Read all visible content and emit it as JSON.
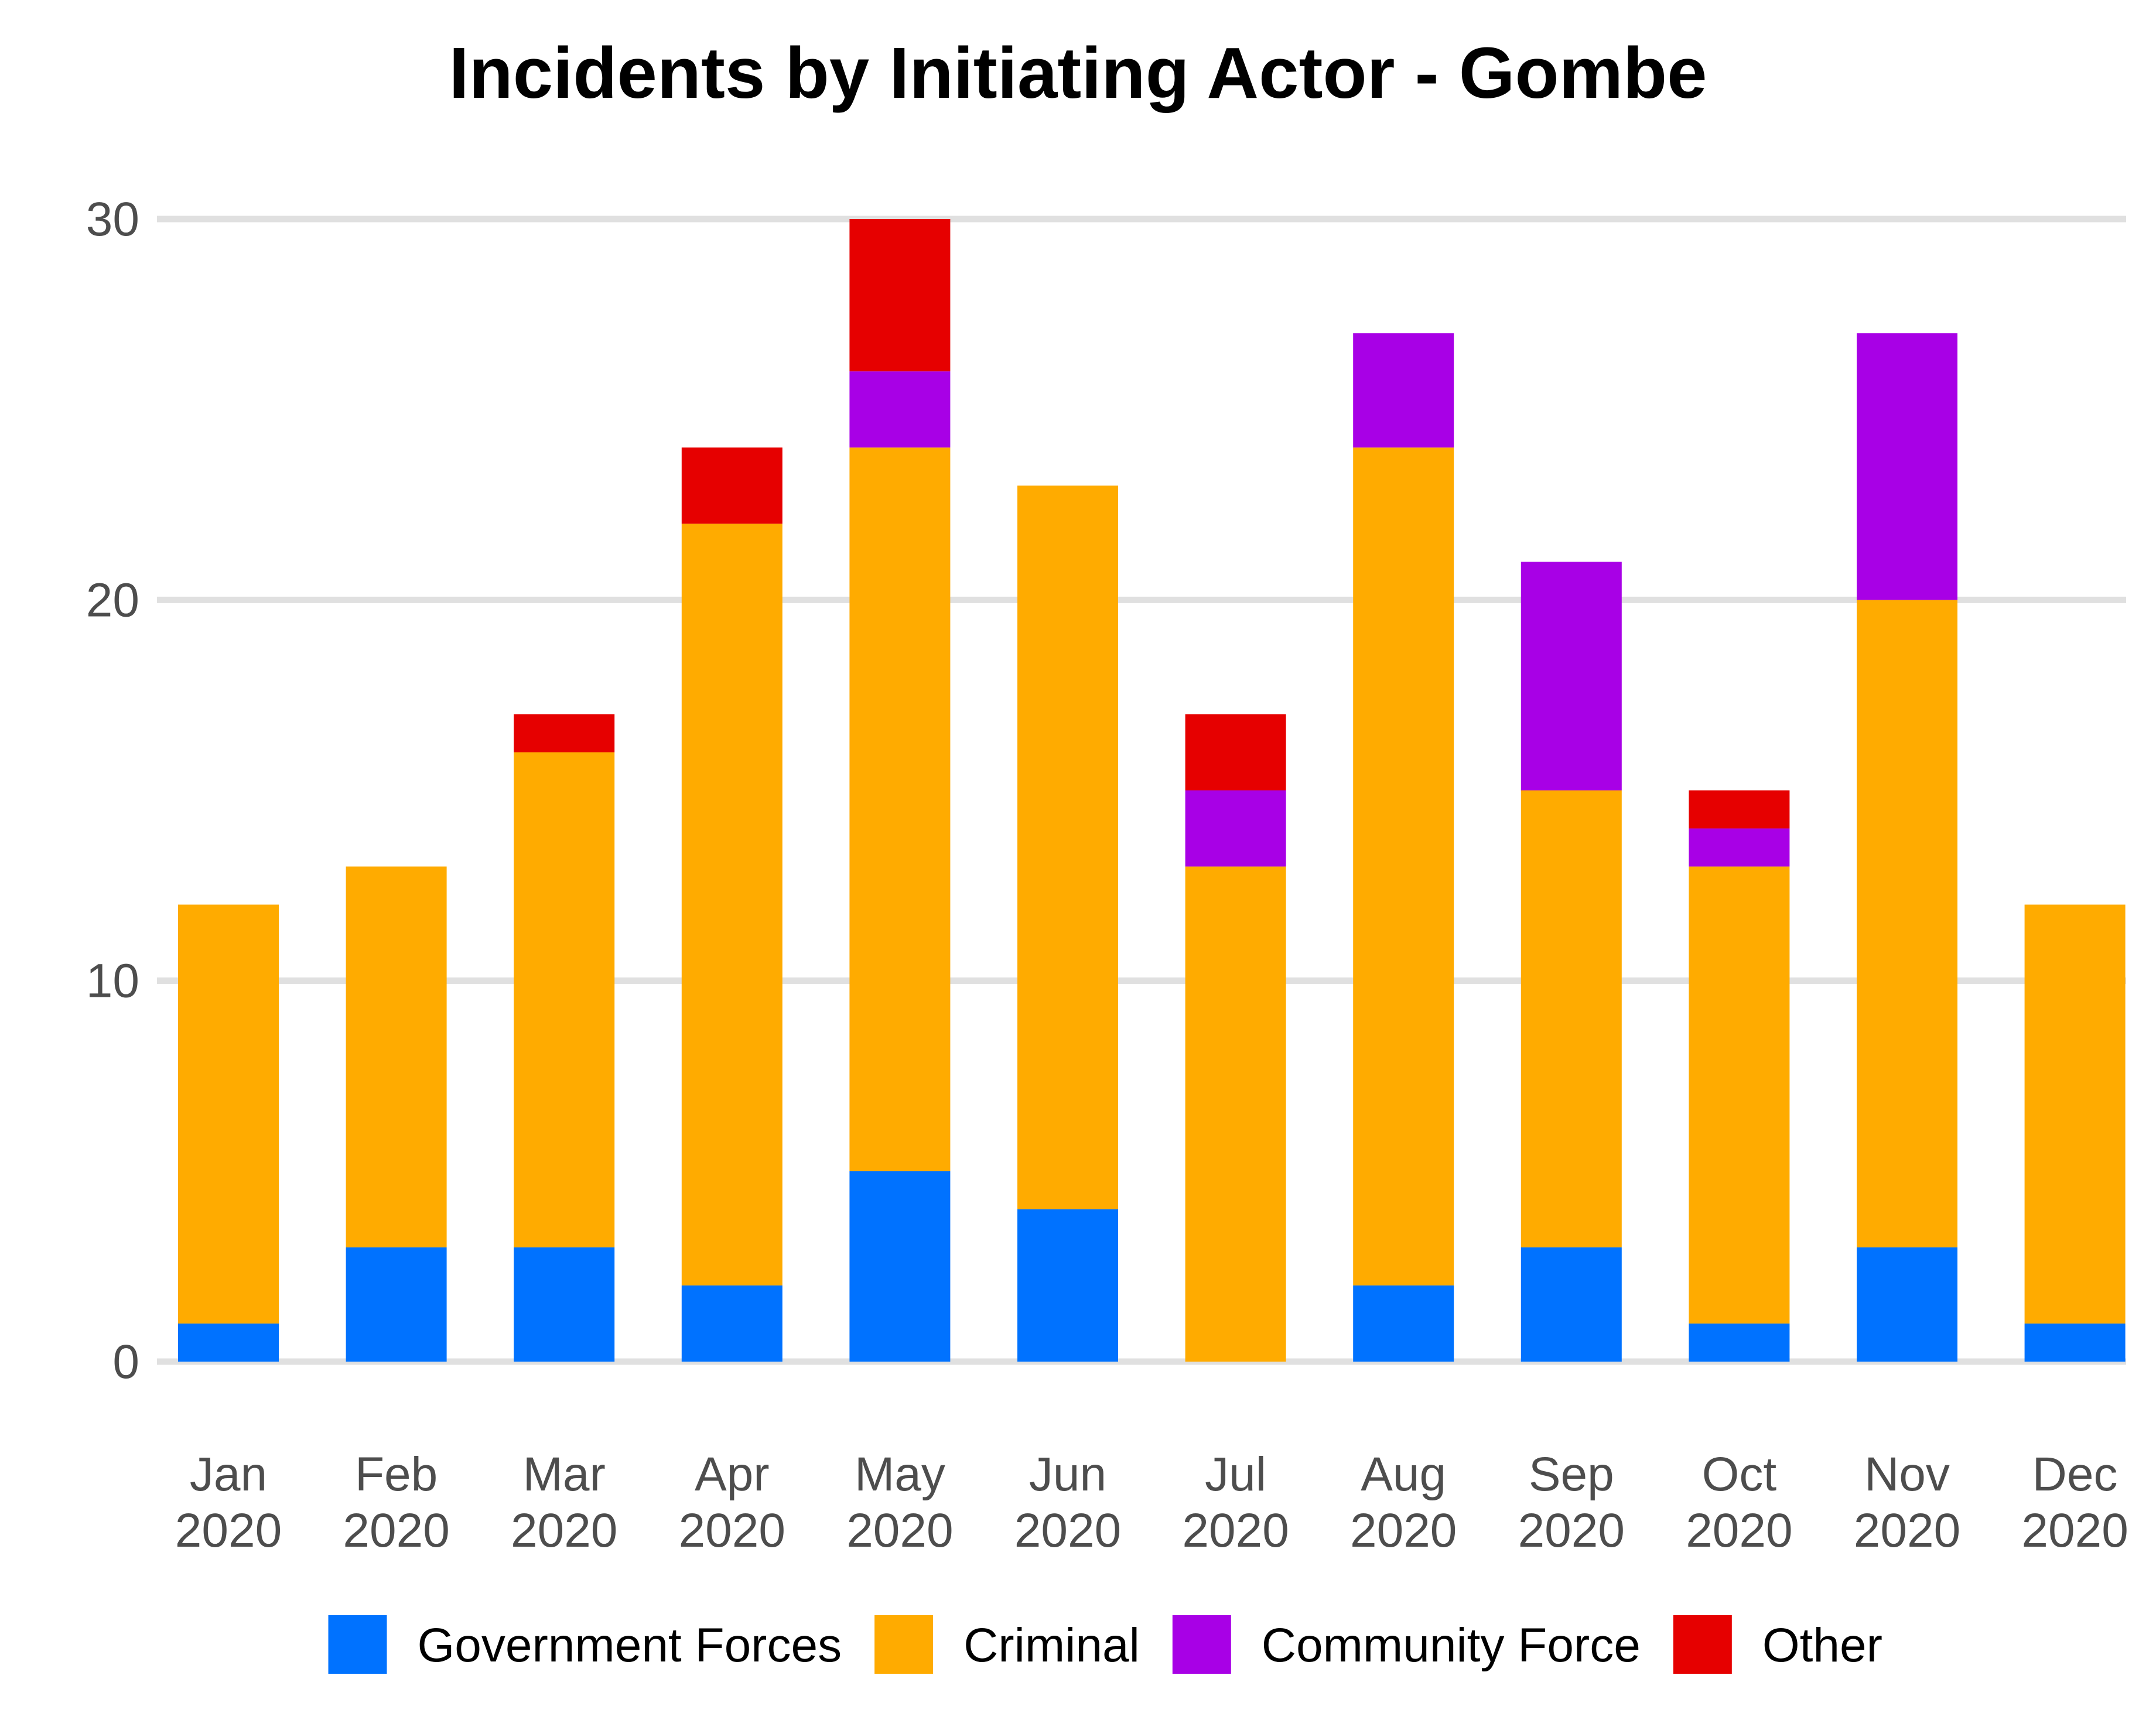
{
  "chart_data": {
    "type": "bar",
    "stacked": true,
    "title": "Incidents by Initiating Actor - Gombe",
    "xlabel": "",
    "ylabel": "",
    "ylim": [
      0,
      30
    ],
    "yticks": [
      0,
      10,
      20,
      30
    ],
    "grid": true,
    "legend_position": "bottom",
    "categories": [
      [
        "Jan",
        "2020"
      ],
      [
        "Feb",
        "2020"
      ],
      [
        "Mar",
        "2020"
      ],
      [
        "Apr",
        "2020"
      ],
      [
        "May",
        "2020"
      ],
      [
        "Jun",
        "2020"
      ],
      [
        "Jul",
        "2020"
      ],
      [
        "Aug",
        "2020"
      ],
      [
        "Sep",
        "2020"
      ],
      [
        "Oct",
        "2020"
      ],
      [
        "Nov",
        "2020"
      ],
      [
        "Dec",
        "2020"
      ]
    ],
    "series": [
      {
        "name": "Government Forces",
        "color": "#0072ff",
        "values": [
          1,
          3,
          3,
          2,
          5,
          4,
          0,
          2,
          3,
          1,
          3,
          1
        ]
      },
      {
        "name": "Criminal",
        "color": "#ffab00",
        "values": [
          11,
          10,
          13,
          20,
          19,
          19,
          13,
          22,
          12,
          12,
          17,
          11
        ]
      },
      {
        "name": "Community Force",
        "color": "#a800e6",
        "values": [
          0,
          0,
          0,
          0,
          2,
          0,
          2,
          3,
          6,
          1,
          7,
          0
        ]
      },
      {
        "name": "Other",
        "color": "#e60000",
        "values": [
          0,
          0,
          1,
          2,
          4,
          0,
          2,
          0,
          0,
          1,
          0,
          0
        ]
      }
    ]
  }
}
